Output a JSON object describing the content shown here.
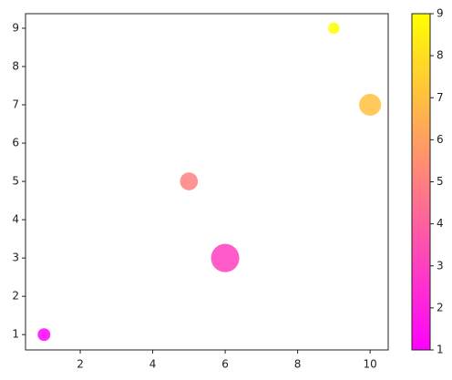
{
  "chart_data": {
    "type": "scatter",
    "x": [
      1,
      5,
      6,
      9,
      10
    ],
    "series": [
      {
        "values": [
          1,
          5,
          3,
          9,
          7
        ],
        "sizes": [
          100,
          200,
          500,
          80,
          300
        ],
        "color_values": [
          1,
          5,
          3,
          9,
          7
        ]
      }
    ],
    "colormap": "spring",
    "xlim": [
      0.49,
      10.5
    ],
    "xticks": [
      2,
      4,
      6,
      8,
      10
    ],
    "ylim": [
      0.6,
      9.38
    ],
    "yticks": [
      1,
      2,
      3,
      4,
      5,
      6,
      7,
      8,
      9
    ],
    "clim": [
      1,
      9
    ],
    "cticks": [
      1,
      2,
      3,
      4,
      5,
      6,
      7,
      8,
      9
    ],
    "grid": false,
    "colorbar": true
  }
}
